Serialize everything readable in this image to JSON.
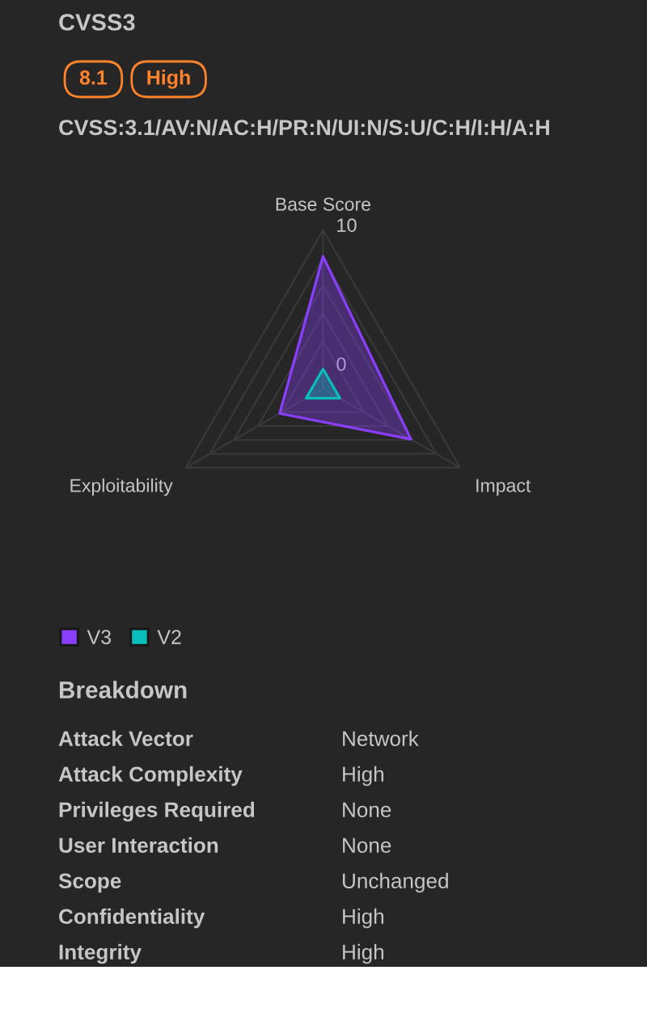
{
  "chart_data": {
    "type": "radar",
    "title": "CVSS3",
    "subtitle": "CVSS:3.1/AV:N/AC:H/PR:N/UI:N/S:U/C:H/I:H/A:H",
    "categories": [
      "Base Score",
      "Impact",
      "Exploitability"
    ],
    "series": [
      {
        "name": "V3",
        "color": "#8a3ffc",
        "values": [
          8.1,
          5.9,
          2.2
        ]
      },
      {
        "name": "V2",
        "color": "#08bdba",
        "values": [
          0,
          0,
          0
        ]
      }
    ],
    "ylim": [
      -1.4,
      10
    ],
    "yticks": [
      0,
      10
    ],
    "grid": true,
    "legend": "bottom left",
    "annotations": [
      "8.1",
      "High",
      "Breakdown",
      "Attack Vector",
      "Network",
      "Attack Complexity",
      "High",
      "Privileges Required",
      "None",
      "User Interaction",
      "None",
      "Scope",
      "Unchanged",
      "Confidentiality",
      "High",
      "Integrity",
      "High"
    ]
  }
}
